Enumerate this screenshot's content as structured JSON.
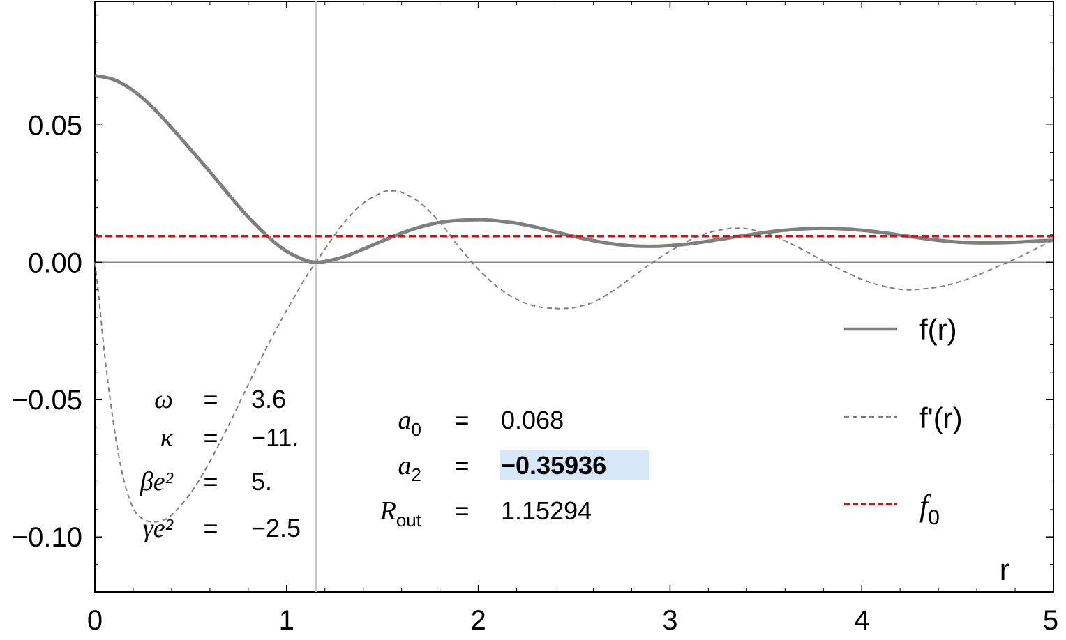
{
  "chart_data": {
    "type": "line",
    "xlabel": "r",
    "ylabel": "",
    "xlim": [
      0,
      5
    ],
    "ylim": [
      -0.12,
      0.095
    ],
    "x_ticks": [
      "0",
      "1",
      "2",
      "3",
      "4",
      "5"
    ],
    "y_ticks": [
      "0.05",
      "0.00",
      "−0.05",
      "−0.10"
    ],
    "y_tick_values": [
      0.05,
      0.0,
      -0.05,
      -0.1
    ],
    "grid": false,
    "legend_position": "right",
    "vertical_marker_x": 1.15294,
    "series": [
      {
        "name": "f(r)",
        "style": "solid",
        "color": "#7f7f7f",
        "x": [
          0,
          0.1,
          0.2,
          0.3,
          0.4,
          0.5,
          0.6,
          0.7,
          0.8,
          0.9,
          1.0,
          1.1,
          1.153,
          1.2,
          1.3,
          1.4,
          1.5,
          1.6,
          1.7,
          1.8,
          1.9,
          2.0,
          2.05,
          2.1,
          2.2,
          2.3,
          2.4,
          2.5,
          2.6,
          2.7,
          2.8,
          2.9,
          3.0,
          3.1,
          3.2,
          3.3,
          3.4,
          3.5,
          3.6,
          3.7,
          3.8,
          3.9,
          4.0,
          4.1,
          4.2,
          4.3,
          4.4,
          4.5,
          4.6,
          4.7,
          4.8,
          4.9,
          5.0
        ],
        "y": [
          0.068,
          0.0665,
          0.0625,
          0.0565,
          0.049,
          0.041,
          0.033,
          0.0245,
          0.0165,
          0.0095,
          0.004,
          0.0007,
          0.0,
          0.0003,
          0.002,
          0.0048,
          0.0078,
          0.0106,
          0.0129,
          0.0145,
          0.0153,
          0.0155,
          0.0154,
          0.0151,
          0.0142,
          0.0128,
          0.0111,
          0.0094,
          0.0079,
          0.0067,
          0.006,
          0.0058,
          0.0061,
          0.0067,
          0.0077,
          0.0088,
          0.0099,
          0.0109,
          0.0117,
          0.0122,
          0.0124,
          0.0122,
          0.0117,
          0.0109,
          0.0099,
          0.0089,
          0.008,
          0.0074,
          0.0071,
          0.0071,
          0.0073,
          0.0077,
          0.008
        ]
      },
      {
        "name": "f'(r)",
        "style": "dashed",
        "color": "#7f7f7f",
        "x": [
          0,
          0.02,
          0.05,
          0.1,
          0.15,
          0.2,
          0.25,
          0.3,
          0.35,
          0.4,
          0.5,
          0.6,
          0.7,
          0.8,
          0.9,
          1.0,
          1.1,
          1.153,
          1.2,
          1.3,
          1.4,
          1.5,
          1.55,
          1.6,
          1.7,
          1.8,
          1.9,
          2.0,
          2.1,
          2.2,
          2.3,
          2.4,
          2.45,
          2.5,
          2.6,
          2.7,
          2.8,
          2.9,
          3.0,
          3.1,
          3.2,
          3.3,
          3.35,
          3.4,
          3.5,
          3.6,
          3.7,
          3.8,
          3.9,
          4.0,
          4.1,
          4.2,
          4.25,
          4.3,
          4.4,
          4.5,
          4.6,
          4.7,
          4.8,
          4.9,
          5.0
        ],
        "y": [
          0.0,
          -0.012,
          -0.033,
          -0.06,
          -0.079,
          -0.0895,
          -0.0935,
          -0.0945,
          -0.094,
          -0.092,
          -0.084,
          -0.0725,
          -0.059,
          -0.0445,
          -0.0305,
          -0.0175,
          -0.0055,
          0.0,
          0.0048,
          0.0145,
          0.0215,
          0.0255,
          0.026,
          0.0255,
          0.0215,
          0.0145,
          0.0055,
          -0.0025,
          -0.009,
          -0.0135,
          -0.016,
          -0.0168,
          -0.0168,
          -0.0165,
          -0.0145,
          -0.0105,
          -0.0055,
          -0.0005,
          0.004,
          0.008,
          0.0108,
          0.0122,
          0.0124,
          0.0122,
          0.0106,
          0.0078,
          0.0043,
          0.0005,
          -0.003,
          -0.0062,
          -0.0085,
          -0.0098,
          -0.01,
          -0.0098,
          -0.009,
          -0.0073,
          -0.0048,
          -0.0018,
          0.0012,
          0.0046,
          0.0082
        ]
      },
      {
        "name": "f0",
        "style": "dashed",
        "color": "#ff0000",
        "x": [
          0,
          5
        ],
        "y": [
          0.0095,
          0.0095
        ]
      }
    ]
  },
  "legend": {
    "f": "f(r)",
    "fprime": "f'(r)",
    "f0_main": "f",
    "f0_sub": "0"
  },
  "params_left": [
    {
      "symbol": "ω",
      "eq": "=",
      "value": "3.6"
    },
    {
      "symbol": "κ",
      "eq": "=",
      "value": "−11."
    },
    {
      "symbol": "βe²",
      "eq": "=",
      "value": "5."
    },
    {
      "symbol": "γe²",
      "eq": "=",
      "value": "−2.5"
    }
  ],
  "params_right": [
    {
      "main": "a",
      "sub": "0",
      "eq": "=",
      "value": "0.068"
    },
    {
      "main": "a",
      "sub": "2",
      "eq": "=",
      "value": "−0.35936",
      "highlight": "#d6e7f7"
    },
    {
      "main": "R",
      "sub": "out",
      "eq": "=",
      "value": "1.15294"
    }
  ]
}
